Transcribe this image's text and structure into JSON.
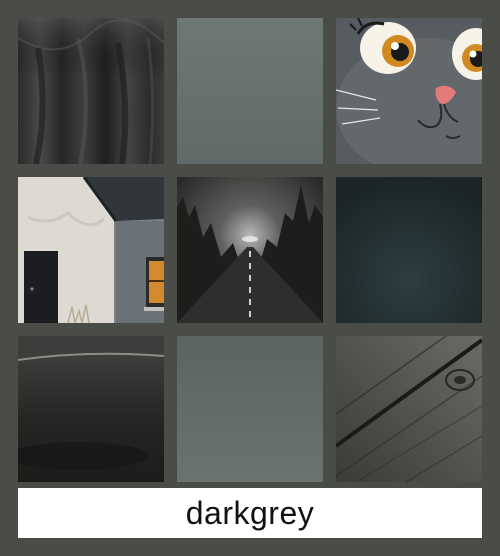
{
  "caption": {
    "text": "darkgrey"
  },
  "colors": {
    "background": "#4a4c48",
    "caption_background": "#ffffff",
    "caption_text": "#111111"
  },
  "tiles": [
    {
      "id": "draped-fabric",
      "icon": "fabric-drape-image"
    },
    {
      "id": "grey-swatch-top",
      "icon": "grey-gradient-swatch"
    },
    {
      "id": "cartoon-cat",
      "icon": "cartoon-cat-face-image"
    },
    {
      "id": "white-house",
      "icon": "house-wall-window-image"
    },
    {
      "id": "foggy-road",
      "icon": "foggy-forest-road-image"
    },
    {
      "id": "dark-teal-swatch",
      "icon": "dark-teal-swatch"
    },
    {
      "id": "dark-object",
      "icon": "dark-ceramic-image"
    },
    {
      "id": "grey-swatch-bottom",
      "icon": "grey-gradient-swatch"
    },
    {
      "id": "wood-planks",
      "icon": "wood-plank-image"
    }
  ]
}
